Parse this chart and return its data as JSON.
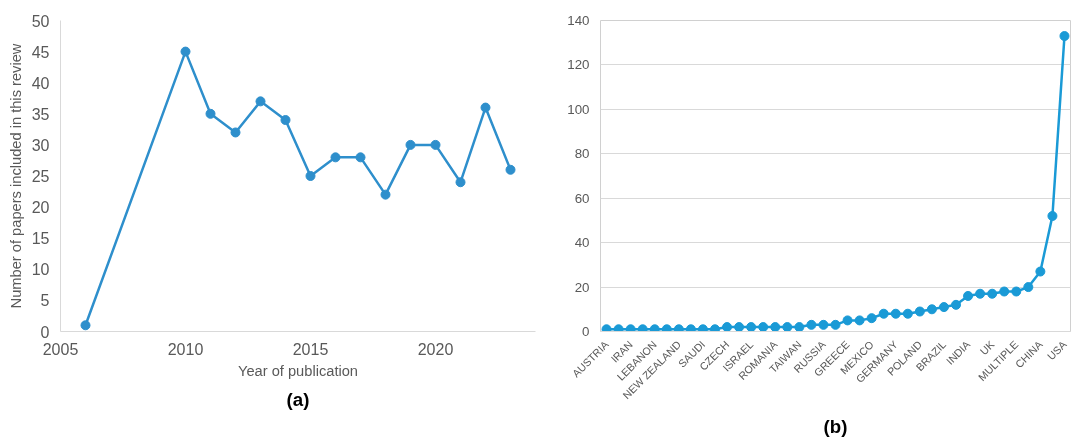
{
  "chart_data": [
    {
      "type": "line",
      "xlabel": "Year of publication",
      "ylabel": "Number of papers included in this review",
      "annotations": [
        "(a)"
      ],
      "x": [
        2006,
        2010,
        2011,
        2012,
        2013,
        2014,
        2015,
        2016,
        2017,
        2018,
        2019,
        2020,
        2021,
        2022,
        2023
      ],
      "series": [
        {
          "color": "#2e8fcc",
          "values": [
            1,
            45,
            35,
            32,
            37,
            34,
            25,
            28,
            28,
            22,
            30,
            30,
            24,
            36,
            26
          ]
        }
      ],
      "xlim": [
        2005,
        2024
      ],
      "xticks": [
        2005,
        2010,
        2015,
        2020
      ],
      "ylim": [
        0,
        50
      ],
      "yticks": [
        0,
        5,
        10,
        15,
        20,
        25,
        30,
        35,
        40,
        45,
        50
      ],
      "grid": false,
      "marker": "circle",
      "line_style": "solid"
    },
    {
      "type": "line",
      "annotations": [
        "(b)"
      ],
      "categories": [
        "AUSTRIA",
        null,
        "IRAN",
        null,
        "LEBANON",
        null,
        "NEW ZEALAND",
        null,
        "SAUDI",
        null,
        "CZECH",
        null,
        "ISRAEL",
        null,
        "ROMANIA",
        null,
        "TAIWAN",
        null,
        "RUSSIA",
        null,
        "GREECE",
        null,
        "MEXICO",
        null,
        "GERMANY",
        null,
        "POLAND",
        null,
        "BRAZIL",
        null,
        "INDIA",
        null,
        "UK",
        null,
        "MULTIPLE",
        null,
        "CHINA",
        null,
        "USA"
      ],
      "series": [
        {
          "color": "#1a9ad6",
          "values": [
            1,
            1,
            1,
            1,
            1,
            1,
            1,
            1,
            1,
            1,
            2,
            2,
            2,
            2,
            2,
            2,
            2,
            3,
            3,
            3,
            5,
            5,
            6,
            8,
            8,
            8,
            9,
            10,
            11,
            12,
            16,
            17,
            17,
            18,
            18,
            20,
            27,
            52,
            133
          ]
        }
      ],
      "ylim": [
        0,
        140
      ],
      "yticks": [
        0,
        20,
        40,
        60,
        80,
        100,
        120,
        140
      ],
      "grid": "y",
      "marker": "circle",
      "line_style": "solid"
    }
  ]
}
